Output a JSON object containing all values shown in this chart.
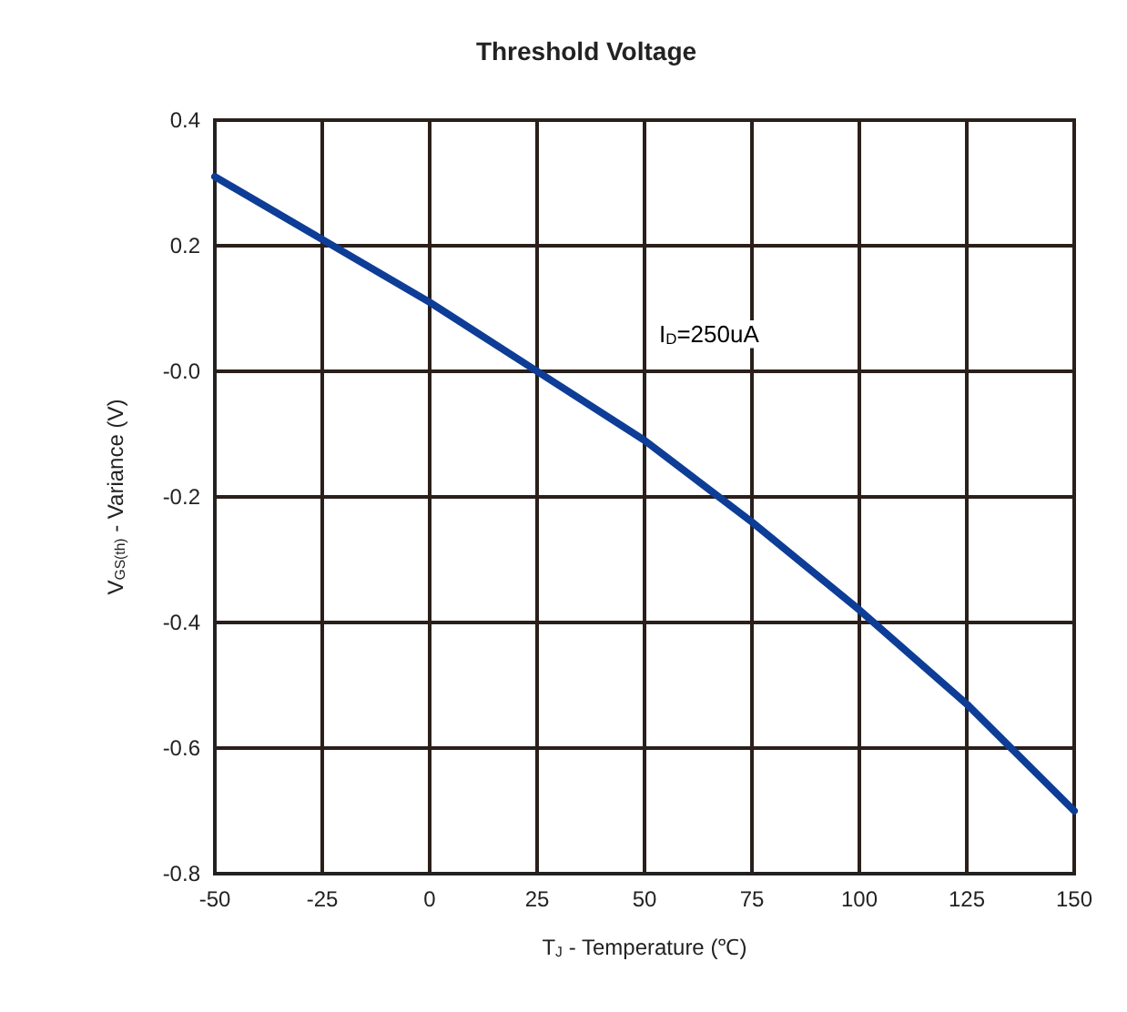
{
  "chart_data": {
    "type": "line",
    "title": "Threshold Voltage",
    "xlabel": "T$_{J}$ - Temperature (℃)",
    "ylabel": "V$_{GS(th)}$ - Variance (V)",
    "series": [
      {
        "color": "#0d3d96",
        "x": [
          -50,
          -25,
          0,
          25,
          50,
          75,
          100,
          125,
          150
        ],
        "values": [
          0.31,
          0.21,
          0.11,
          0.0,
          -0.11,
          -0.24,
          -0.38,
          -0.53,
          -0.7
        ]
      }
    ],
    "xlim": [
      -50,
      150
    ],
    "xticks": [
      -50,
      -25,
      0,
      25,
      50,
      75,
      100,
      125,
      150
    ],
    "ylim": [
      -0.8,
      0.4
    ],
    "yticks": [
      {
        "value": -0.8,
        "label": "-0.8"
      },
      {
        "value": -0.6,
        "label": "-0.6"
      },
      {
        "value": -0.4,
        "label": "-0.4"
      },
      {
        "value": -0.2,
        "label": "-0.2"
      },
      {
        "value": 0,
        "label": "-0.0"
      },
      {
        "value": 0.2,
        "label": "0.2"
      },
      {
        "value": 0.4,
        "label": "0.4"
      }
    ],
    "annotations": [
      "I$_{D}$=250uA"
    ],
    "grid": true,
    "marker": "none",
    "line_style": "solid"
  }
}
